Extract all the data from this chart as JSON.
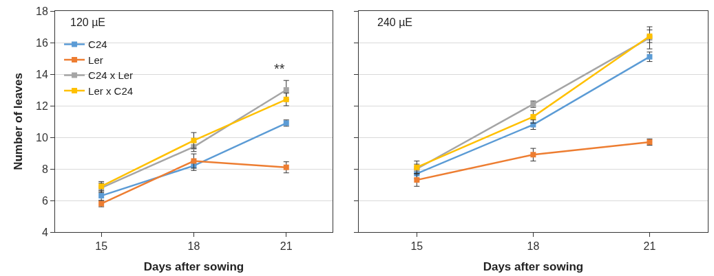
{
  "chart_data": [
    {
      "type": "line",
      "title": "120 µE",
      "xlabel": "Days after sowing",
      "ylabel": "Number of leaves",
      "categories": [
        "15",
        "18",
        "21"
      ],
      "ylim": [
        4,
        18
      ],
      "yticks": [
        4,
        6,
        8,
        10,
        12,
        14,
        16,
        18
      ],
      "grid": "y",
      "marker": "square",
      "legend": "top left",
      "annotations": [
        "**"
      ],
      "series": [
        {
          "name": "C24",
          "color": "#5b9bd5",
          "values": [
            6.3,
            8.2,
            10.9
          ],
          "errors": [
            0.3,
            0.3,
            0.2
          ]
        },
        {
          "name": "Ler",
          "color": "#ed7d31",
          "values": [
            5.8,
            8.5,
            8.1
          ],
          "errors": [
            0.2,
            0.45,
            0.35
          ]
        },
        {
          "name": "C24 x Ler",
          "color": "#a5a5a5",
          "values": [
            6.8,
            9.4,
            13.0
          ],
          "errors": [
            0.3,
            0.3,
            0.6
          ]
        },
        {
          "name": "Ler x C24",
          "color": "#ffc000",
          "values": [
            6.9,
            9.8,
            12.4
          ],
          "errors": [
            0.3,
            0.5,
            0.4
          ]
        }
      ]
    },
    {
      "type": "line",
      "title": "240 µE",
      "xlabel": "Days after sowing",
      "categories": [
        "15",
        "18",
        "21"
      ],
      "ylim": [
        4,
        18
      ],
      "yticks": [
        4,
        6,
        8,
        10,
        12,
        14,
        16,
        18
      ],
      "grid": "y",
      "marker": "square",
      "tick_labels": "x",
      "series": [
        {
          "color": "#5b9bd5",
          "values": [
            7.7,
            10.8,
            15.1
          ],
          "errors": [
            0.3,
            0.3,
            0.3
          ]
        },
        {
          "color": "#ed7d31",
          "values": [
            7.3,
            8.9,
            9.7
          ],
          "errors": [
            0.4,
            0.4,
            0.2
          ]
        },
        {
          "color": "#a5a5a5",
          "values": [
            8.0,
            12.1,
            16.3
          ],
          "errors": [
            0.3,
            0.2,
            0.7
          ]
        },
        {
          "color": "#ffc000",
          "values": [
            8.1,
            11.3,
            16.4
          ],
          "errors": [
            0.4,
            0.4,
            0.4
          ]
        }
      ]
    }
  ]
}
